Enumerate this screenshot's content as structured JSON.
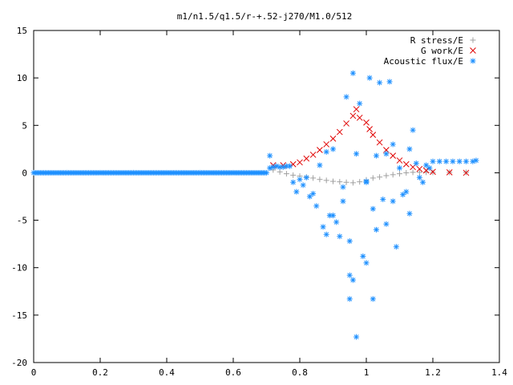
{
  "chart_data": {
    "type": "scatter",
    "title": "m1/n1.5/q1.5/r-+.52-j270/M1.0/512",
    "xlabel": "",
    "ylabel": "",
    "xlim": [
      0,
      1.4
    ],
    "ylim": [
      -20,
      15
    ],
    "grid": false,
    "legend_position": "top-right",
    "x_ticks": [
      "0",
      "0.2",
      "0.4",
      "0.6",
      "0.8",
      "1",
      "1.2",
      "1.4"
    ],
    "y_ticks": [
      "15",
      "10",
      "5",
      "0",
      "-5",
      "-10",
      "-15",
      "-20"
    ],
    "x_tick_values": [
      0,
      0.2,
      0.4,
      0.6,
      0.8,
      1.0,
      1.2,
      1.4
    ],
    "y_tick_values": [
      15,
      10,
      5,
      0,
      -5,
      -10,
      -15,
      -20
    ],
    "series": [
      {
        "name": "R stress/E",
        "marker": "plus",
        "color": "#a0a0a0",
        "points": [
          [
            0.72,
            0.3
          ],
          [
            0.74,
            0.1
          ],
          [
            0.76,
            -0.1
          ],
          [
            0.78,
            -0.25
          ],
          [
            0.8,
            -0.35
          ],
          [
            0.82,
            -0.45
          ],
          [
            0.84,
            -0.55
          ],
          [
            0.86,
            -0.7
          ],
          [
            0.88,
            -0.8
          ],
          [
            0.9,
            -0.9
          ],
          [
            0.92,
            -0.95
          ],
          [
            0.94,
            -1.0
          ],
          [
            0.96,
            -1.05
          ],
          [
            0.98,
            -0.95
          ],
          [
            1.0,
            -0.75
          ],
          [
            1.02,
            -0.55
          ],
          [
            1.04,
            -0.45
          ],
          [
            1.06,
            -0.3
          ],
          [
            1.08,
            -0.2
          ],
          [
            1.1,
            -0.1
          ],
          [
            1.12,
            0.0
          ],
          [
            1.14,
            0.05
          ],
          [
            1.16,
            0.05
          ],
          [
            1.18,
            0.05
          ],
          [
            1.2,
            0.05
          ],
          [
            1.25,
            0.05
          ],
          [
            1.3,
            0.05
          ]
        ]
      },
      {
        "name": "G work/E",
        "marker": "cross",
        "color": "#e00000",
        "points": [
          [
            0.72,
            0.8
          ],
          [
            0.75,
            0.8
          ],
          [
            0.78,
            0.9
          ],
          [
            0.8,
            1.1
          ],
          [
            0.82,
            1.5
          ],
          [
            0.84,
            1.9
          ],
          [
            0.86,
            2.4
          ],
          [
            0.88,
            3.0
          ],
          [
            0.9,
            3.6
          ],
          [
            0.92,
            4.3
          ],
          [
            0.94,
            5.2
          ],
          [
            0.96,
            6.0
          ],
          [
            0.97,
            6.7
          ],
          [
            0.98,
            5.8
          ],
          [
            1.0,
            5.3
          ],
          [
            1.01,
            4.6
          ],
          [
            1.02,
            4.0
          ],
          [
            1.04,
            3.2
          ],
          [
            1.06,
            2.4
          ],
          [
            1.08,
            1.8
          ],
          [
            1.1,
            1.3
          ],
          [
            1.12,
            0.9
          ],
          [
            1.14,
            0.6
          ],
          [
            1.16,
            0.4
          ],
          [
            1.18,
            0.25
          ],
          [
            1.2,
            0.1
          ],
          [
            1.25,
            0.05
          ],
          [
            1.3,
            0.0
          ]
        ]
      },
      {
        "name": "Acoustic flux/E",
        "marker": "star",
        "color": "#1e90ff",
        "points": [
          [
            0.71,
            1.8
          ],
          [
            0.71,
            0.5
          ],
          [
            0.72,
            0.6
          ],
          [
            0.73,
            0.7
          ],
          [
            0.74,
            0.6
          ],
          [
            0.75,
            0.6
          ],
          [
            0.76,
            0.7
          ],
          [
            0.77,
            0.7
          ],
          [
            0.78,
            -1.0
          ],
          [
            0.79,
            -2.0
          ],
          [
            0.8,
            -0.7
          ],
          [
            0.81,
            -1.3
          ],
          [
            0.82,
            -0.5
          ],
          [
            0.83,
            -2.5
          ],
          [
            0.84,
            -2.2
          ],
          [
            0.85,
            -3.5
          ],
          [
            0.86,
            0.8
          ],
          [
            0.87,
            -5.7
          ],
          [
            0.88,
            -6.5
          ],
          [
            0.88,
            2.2
          ],
          [
            0.89,
            -4.5
          ],
          [
            0.9,
            -4.5
          ],
          [
            0.9,
            2.5
          ],
          [
            0.91,
            -5.2
          ],
          [
            0.92,
            -6.7
          ],
          [
            0.93,
            -3.0
          ],
          [
            0.93,
            -1.5
          ],
          [
            0.94,
            8.0
          ],
          [
            0.95,
            -7.2
          ],
          [
            0.95,
            -13.3
          ],
          [
            0.95,
            -10.8
          ],
          [
            0.96,
            10.5
          ],
          [
            0.96,
            -11.3
          ],
          [
            0.97,
            -17.3
          ],
          [
            0.97,
            2.0
          ],
          [
            0.98,
            7.3
          ],
          [
            0.99,
            -8.8
          ],
          [
            1.0,
            -9.5
          ],
          [
            1.0,
            -1.0
          ],
          [
            1.0,
            -0.9
          ],
          [
            1.01,
            10.0
          ],
          [
            1.02,
            -13.3
          ],
          [
            1.02,
            -3.8
          ],
          [
            1.03,
            1.8
          ],
          [
            1.03,
            -6.0
          ],
          [
            1.04,
            9.5
          ],
          [
            1.05,
            -2.8
          ],
          [
            1.06,
            2.0
          ],
          [
            1.06,
            -5.4
          ],
          [
            1.07,
            9.6
          ],
          [
            1.08,
            -3.0
          ],
          [
            1.08,
            3.0
          ],
          [
            1.09,
            -7.8
          ],
          [
            1.1,
            0.5
          ],
          [
            1.11,
            -2.3
          ],
          [
            1.12,
            -2.0
          ],
          [
            1.13,
            2.5
          ],
          [
            1.13,
            -4.3
          ],
          [
            1.14,
            4.5
          ],
          [
            1.15,
            1.0
          ],
          [
            1.16,
            -0.5
          ],
          [
            1.17,
            -1.0
          ],
          [
            1.18,
            0.8
          ],
          [
            1.19,
            0.5
          ],
          [
            1.2,
            1.2
          ],
          [
            1.22,
            1.2
          ],
          [
            1.24,
            1.2
          ],
          [
            1.26,
            1.2
          ],
          [
            1.28,
            1.2
          ],
          [
            1.3,
            1.2
          ],
          [
            1.32,
            1.2
          ],
          [
            1.33,
            1.3
          ]
        ]
      }
    ]
  }
}
